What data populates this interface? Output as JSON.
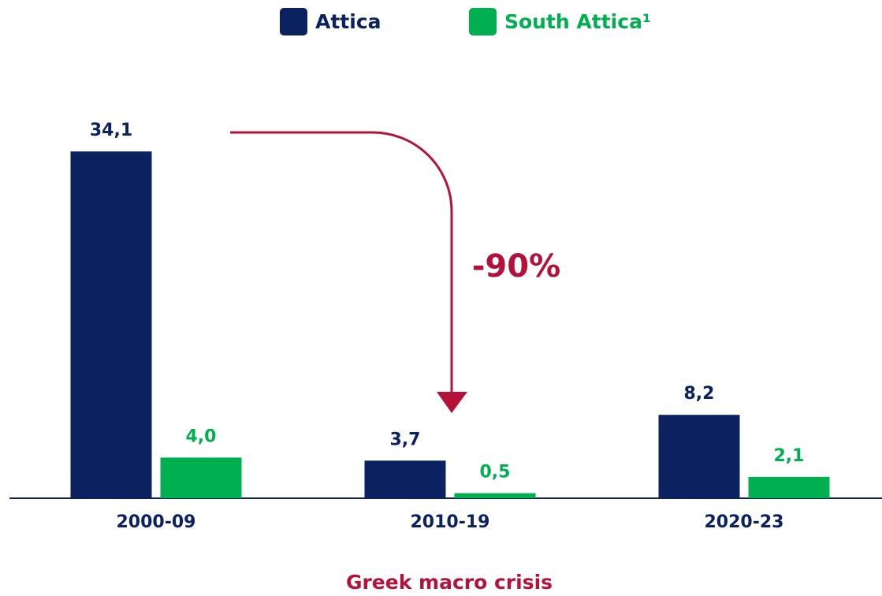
{
  "chart_data": {
    "type": "bar",
    "categories": [
      "2000-09",
      "2010-19",
      "2020-23"
    ],
    "series": [
      {
        "name": "Attica",
        "color": "#0b2160",
        "values": [
          34.1,
          3.7,
          8.2
        ],
        "value_labels": [
          "34,1",
          "3,7",
          "8,2"
        ]
      },
      {
        "name": "South Attica¹",
        "color": "#00b050",
        "values": [
          4.0,
          0.5,
          2.1
        ],
        "value_labels": [
          "4,0",
          "0,5",
          "2,1"
        ]
      }
    ],
    "ylim": [
      0,
      40
    ],
    "legend": "top",
    "annotations": [
      "-90%",
      "Greek macro crisis"
    ]
  }
}
